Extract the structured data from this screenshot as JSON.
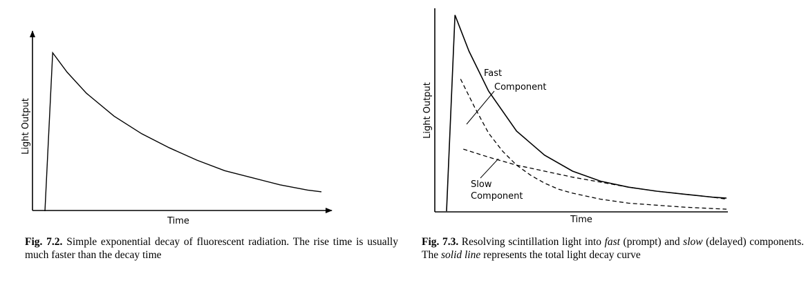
{
  "figures": [
    {
      "number": "Fig. 7.2.",
      "caption": "Simple exponential decay of fluorescent radiation. The rise time is usually much faster than the decay time",
      "chart_data": {
        "type": "line",
        "xlabel": "Time",
        "ylabel": "Light Output",
        "series": [
          {
            "x": [
              0.0,
              0.028,
              0.08,
              0.15,
              0.25,
              0.35,
              0.45,
              0.55,
              0.65,
              0.75,
              0.85,
              0.95,
              1.0
            ],
            "y": [
              0.0,
              0.9,
              0.79,
              0.67,
              0.54,
              0.44,
              0.36,
              0.29,
              0.23,
              0.19,
              0.15,
              0.12,
              0.11
            ]
          }
        ]
      }
    },
    {
      "number": "Fig. 7.3.",
      "caption_parts": [
        {
          "text": "Resolving scintillation light into ",
          "italic": false
        },
        {
          "text": "fast",
          "italic": true
        },
        {
          "text": " (prompt) and ",
          "italic": false
        },
        {
          "text": "slow",
          "italic": true
        },
        {
          "text": " (delayed) components. The ",
          "italic": false
        },
        {
          "text": "solid line",
          "italic": true
        },
        {
          "text": " represents the total light decay curve",
          "italic": false
        }
      ],
      "chart_data": {
        "type": "line",
        "xlabel": "Time",
        "ylabel": "Light Output",
        "annotations": [
          {
            "lines": [
              "Fast",
              "Component"
            ],
            "target": "Fast Component"
          },
          {
            "lines": [
              "Slow",
              "Component"
            ],
            "target": "Slow Component"
          }
        ],
        "series": [
          {
            "name": "Total",
            "style": "solid",
            "x": [
              0.0,
              0.03,
              0.08,
              0.15,
              0.25,
              0.35,
              0.45,
              0.55,
              0.65,
              0.75,
              0.85,
              0.95,
              1.0
            ],
            "y": [
              0.0,
              0.98,
              0.8,
              0.6,
              0.4,
              0.28,
              0.2,
              0.15,
              0.12,
              0.1,
              0.085,
              0.07,
              0.065
            ]
          },
          {
            "name": "Fast Component",
            "style": "dashed",
            "x": [
              0.05,
              0.1,
              0.15,
              0.2,
              0.25,
              0.3,
              0.35,
              0.4,
              0.45,
              0.55,
              0.65,
              0.75,
              0.85,
              1.0
            ],
            "y": [
              0.66,
              0.52,
              0.39,
              0.3,
              0.23,
              0.18,
              0.14,
              0.11,
              0.09,
              0.06,
              0.04,
              0.03,
              0.02,
              0.01
            ]
          },
          {
            "name": "Slow Component",
            "style": "dashed",
            "x": [
              0.06,
              0.15,
              0.25,
              0.35,
              0.45,
              0.55,
              0.65,
              0.75,
              0.85,
              0.95,
              1.0
            ],
            "y": [
              0.31,
              0.27,
              0.23,
              0.2,
              0.17,
              0.145,
              0.12,
              0.1,
              0.085,
              0.07,
              0.06
            ]
          }
        ]
      }
    }
  ]
}
